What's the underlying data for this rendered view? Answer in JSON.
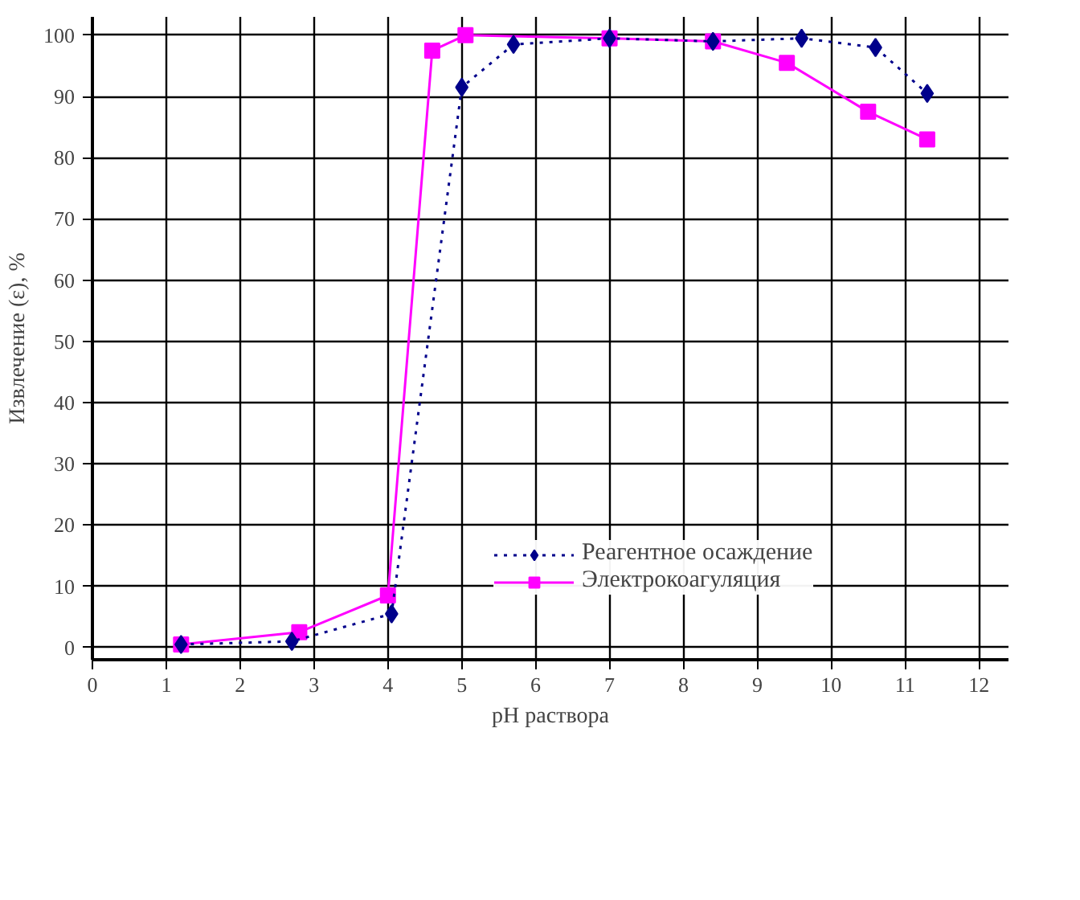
{
  "chart_data": {
    "type": "line",
    "ylabel": "Извлечение (ε), %",
    "xlabel": "pH раствора",
    "xlim": [
      0,
      12.4
    ],
    "ylim": [
      -2,
      103
    ],
    "xticks": [
      0,
      1,
      2,
      3,
      4,
      5,
      6,
      7,
      8,
      9,
      10,
      11,
      12
    ],
    "yticks": [
      0,
      10,
      20,
      30,
      40,
      50,
      60,
      70,
      80,
      90,
      100
    ],
    "grid": true,
    "legend": "bottom",
    "series": [
      {
        "name": "Реагентное осаждение",
        "color": "#00008b",
        "marker": "diamond",
        "line_style": "dotted",
        "x": [
          1.2,
          2.7,
          4.05,
          5.0,
          5.7,
          7.0,
          8.4,
          9.6,
          10.6,
          11.3
        ],
        "values": [
          0.5,
          1,
          5.5,
          91.5,
          98.5,
          99.5,
          99,
          99.5,
          98,
          90.5
        ]
      },
      {
        "name": "Электрокоагуляция",
        "color": "#ff00ff",
        "marker": "square",
        "line_style": "solid",
        "x": [
          1.2,
          2.8,
          4.0,
          4.6,
          5.05,
          7.0,
          8.4,
          9.4,
          10.5,
          11.3
        ],
        "values": [
          0.5,
          2.5,
          8.5,
          97.5,
          100,
          99.5,
          99,
          95.5,
          87.5,
          83
        ]
      }
    ]
  }
}
